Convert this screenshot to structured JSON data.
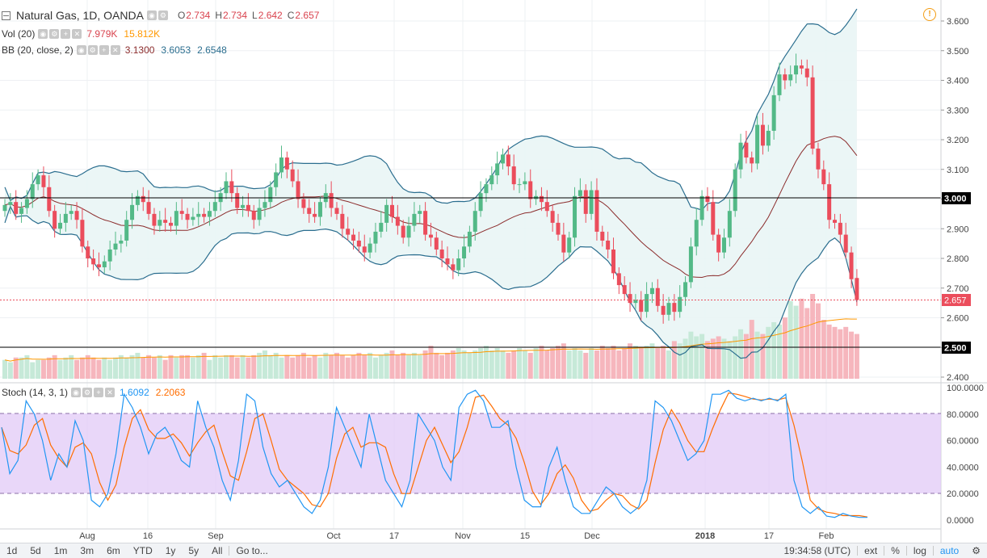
{
  "header": {
    "title": "Natural Gas, 1D, OANDA",
    "ohlc": {
      "O": "2.734",
      "H": "2.734",
      "L": "2.642",
      "C": "2.657"
    },
    "vol_label": "Vol (20)",
    "vol_values": [
      "7.979K",
      "15.812K"
    ],
    "bb_label": "BB (20, close, 2)",
    "bb_values": [
      "3.1300",
      "3.6053",
      "2.6548"
    ],
    "stoch_label": "Stoch (14, 3, 1)",
    "stoch_values": [
      "1.6092",
      "2.2063"
    ]
  },
  "colors": {
    "up": "#53b987",
    "down": "#eb4d5c",
    "bb_band": "#2b6e8f",
    "bb_basis": "#8b2c2c",
    "stoch_k": "#2196f3",
    "stoch_d": "#ff6d00",
    "stoch_fill": "#e1c9f7",
    "volume_up": "#c6e9d8",
    "volume_down": "#f6b6bd",
    "volume_ma": "#ff9800"
  },
  "price_axis": {
    "ticks": [
      "3.600",
      "3.500",
      "3.400",
      "3.300",
      "3.200",
      "3.100",
      "3.000",
      "2.900",
      "2.800",
      "2.700",
      "2.600",
      "2.500",
      "2.400"
    ],
    "last_price_label": "2.657",
    "level_3": "3.000",
    "level_25": "2.500"
  },
  "stoch_axis": {
    "ticks": [
      "100.0000",
      "80.0000",
      "60.0000",
      "40.0000",
      "20.0000",
      "0.0000"
    ]
  },
  "time_axis": {
    "labels": [
      "Aug",
      "16",
      "Sep",
      "Oct",
      "17",
      "Nov",
      "15",
      "Dec",
      "2018",
      "17",
      "Feb"
    ]
  },
  "bottom_bar": {
    "ranges": [
      "1d",
      "5d",
      "1m",
      "3m",
      "6m",
      "YTD",
      "1y",
      "5y",
      "All"
    ],
    "goto": "Go to...",
    "clock": "19:34:58 (UTC)",
    "options": [
      "ext",
      "%",
      "log",
      "auto"
    ]
  },
  "alert_icon": "alert-icon",
  "chart_data": {
    "type": "candlestick",
    "title": "Natural Gas, 1D, OANDA",
    "ylim": [
      2.4,
      3.62
    ],
    "horizontal_lines": [
      3.0,
      2.5
    ],
    "last_price": 2.657,
    "closes": [
      2.98,
      2.99,
      2.95,
      2.97,
      3.0,
      3.05,
      3.08,
      3.04,
      2.96,
      2.9,
      2.92,
      2.95,
      2.96,
      2.93,
      2.84,
      2.8,
      2.78,
      2.77,
      2.79,
      2.83,
      2.85,
      2.86,
      2.93,
      2.98,
      3.01,
      2.99,
      2.95,
      2.91,
      2.93,
      2.92,
      2.91,
      2.96,
      2.95,
      2.93,
      2.94,
      2.95,
      2.94,
      2.96,
      2.99,
      3.02,
      3.06,
      3.02,
      2.97,
      2.98,
      2.96,
      2.93,
      2.97,
      2.99,
      3.04,
      3.09,
      3.14,
      3.1,
      3.06,
      3.0,
      2.97,
      2.95,
      2.94,
      2.99,
      3.02,
      2.97,
      2.95,
      2.9,
      2.88,
      2.86,
      2.84,
      2.82,
      2.85,
      2.89,
      2.92,
      2.98,
      2.94,
      2.91,
      2.87,
      2.91,
      2.95,
      2.96,
      2.88,
      2.87,
      2.83,
      2.8,
      2.78,
      2.76,
      2.8,
      2.84,
      2.89,
      2.96,
      3.02,
      3.05,
      3.08,
      3.12,
      3.15,
      3.11,
      3.05,
      3.05,
      3.06,
      3.0,
      3.01,
      2.99,
      2.96,
      2.92,
      2.88,
      2.82,
      2.87,
      3.01,
      3.03,
      2.95,
      3.03,
      2.89,
      2.86,
      2.83,
      2.75,
      2.71,
      2.68,
      2.65,
      2.66,
      2.62,
      2.68,
      2.7,
      2.64,
      2.61,
      2.65,
      2.62,
      2.67,
      2.72,
      2.84,
      2.93,
      3.01,
      2.99,
      2.88,
      2.82,
      2.87,
      2.96,
      3.1,
      3.19,
      3.14,
      3.12,
      3.25,
      3.18,
      3.23,
      3.35,
      3.42,
      3.4,
      3.42,
      3.45,
      3.44,
      3.41,
      3.17,
      3.1,
      3.05,
      2.93,
      2.92,
      2.88,
      2.82,
      2.73,
      2.66
    ],
    "volume": [
      8,
      7,
      9,
      9,
      10,
      7,
      8,
      8,
      9,
      10,
      8,
      9,
      10,
      8,
      9,
      10,
      9,
      8,
      9,
      8,
      9,
      10,
      9,
      10,
      11,
      9,
      10,
      9,
      10,
      8,
      10,
      9,
      10,
      10,
      9,
      10,
      11,
      8,
      10,
      9,
      10,
      10,
      9,
      10,
      9,
      10,
      11,
      12,
      10,
      11,
      9,
      10,
      9,
      10,
      11,
      9,
      10,
      9,
      11,
      10,
      11,
      10,
      9,
      10,
      11,
      10,
      11,
      9,
      10,
      11,
      12,
      10,
      11,
      10,
      11,
      10,
      12,
      14,
      11,
      10,
      11,
      12,
      13,
      12,
      11,
      12,
      13,
      14,
      12,
      13,
      12,
      11,
      12,
      13,
      12,
      11,
      13,
      14,
      12,
      13,
      14,
      15,
      12,
      13,
      12,
      11,
      13,
      12,
      14,
      13,
      14,
      12,
      13,
      15,
      14,
      13,
      14,
      15,
      13,
      14,
      12,
      16,
      15,
      17,
      20,
      18,
      19,
      16,
      17,
      18,
      17,
      16,
      18,
      21,
      19,
      25,
      20,
      19,
      22,
      24,
      23,
      26,
      33,
      31,
      34,
      30,
      36,
      32,
      25,
      23,
      22,
      21,
      22,
      20,
      19
    ],
    "stoch_k": [
      70,
      35,
      45,
      90,
      80,
      60,
      30,
      50,
      40,
      75,
      60,
      15,
      10,
      20,
      50,
      95,
      85,
      70,
      50,
      65,
      70,
      60,
      45,
      40,
      90,
      70,
      55,
      30,
      15,
      45,
      95,
      90,
      55,
      35,
      25,
      30,
      20,
      10,
      5,
      15,
      40,
      85,
      70,
      55,
      40,
      80,
      55,
      30,
      20,
      10,
      30,
      80,
      70,
      60,
      40,
      30,
      85,
      95,
      98,
      90,
      70,
      70,
      75,
      40,
      15,
      10,
      10,
      40,
      55,
      30,
      10,
      5,
      5,
      15,
      25,
      20,
      10,
      5,
      10,
      30,
      90,
      85,
      75,
      60,
      45,
      50,
      60,
      95,
      95,
      98,
      92,
      90,
      92,
      90,
      92,
      90,
      95,
      30,
      10,
      5,
      10,
      3,
      2,
      5,
      3,
      2,
      2
    ]
  }
}
